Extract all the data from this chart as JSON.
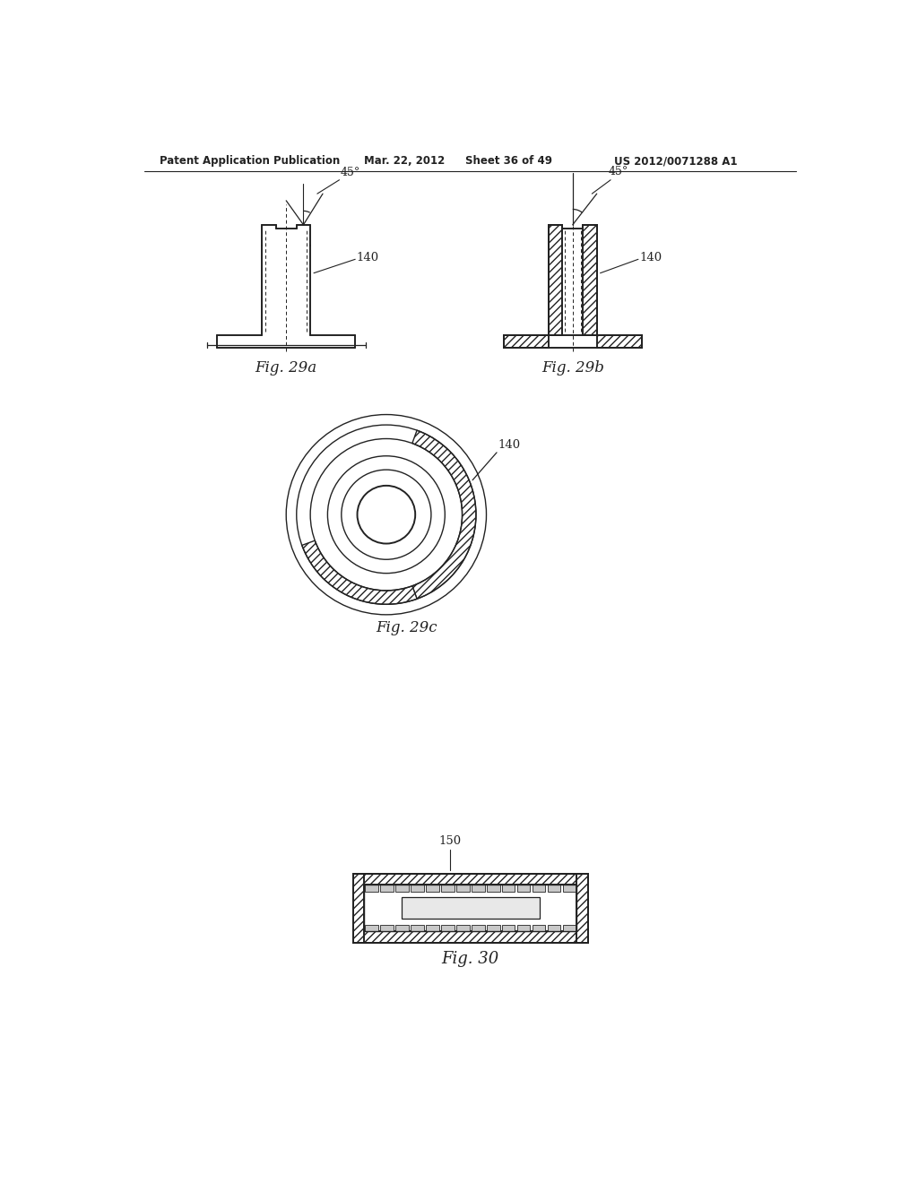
{
  "background_color": "#ffffff",
  "header_text": "Patent Application Publication",
  "header_date": "Mar. 22, 2012",
  "header_sheet": "Sheet 36 of 49",
  "header_patent": "US 2012/0071288 A1",
  "fig29a_label": "Fig. 29a",
  "fig29b_label": "Fig. 29b",
  "fig29c_label": "Fig. 29c",
  "fig30_label": "Fig. 30",
  "label_140": "140",
  "label_150": "150",
  "label_45deg": "45°",
  "text_color": "#1a1a1a",
  "line_color": "#222222"
}
